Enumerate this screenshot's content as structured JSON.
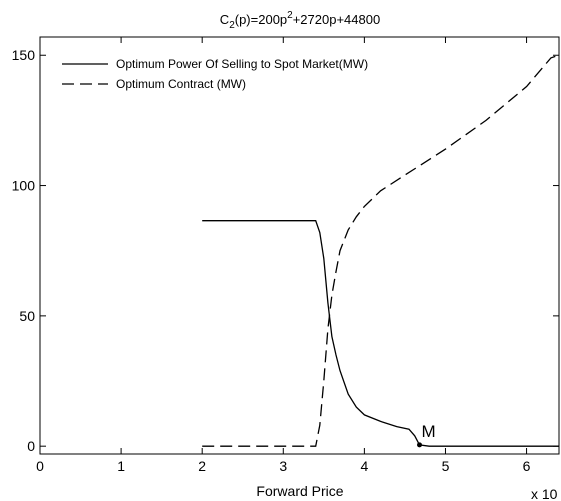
{
  "chart_data": {
    "type": "line",
    "title": {
      "lead": "C",
      "sub": "2",
      "mid": "(p)=200p",
      "sup": "2",
      "tail": "+2720p+44800"
    },
    "xlabel": "Forward Price",
    "x_exponent_label": "x 10",
    "xlim": [
      0,
      6.4
    ],
    "ylim": [
      -3,
      157
    ],
    "xticks": [
      0,
      1,
      2,
      3,
      4,
      5,
      6
    ],
    "yticks": [
      0,
      50,
      100,
      150
    ],
    "grid": false,
    "legend_position": "top-left",
    "series": [
      {
        "name": "Optimum Power Of Selling to Spot Market(MW)",
        "style": "solid",
        "color": "#000000",
        "points": [
          [
            2,
            86.5
          ],
          [
            3.4,
            86.5
          ],
          [
            3.45,
            82
          ],
          [
            3.5,
            72
          ],
          [
            3.55,
            55
          ],
          [
            3.6,
            42
          ],
          [
            3.65,
            35
          ],
          [
            3.7,
            29
          ],
          [
            3.8,
            20
          ],
          [
            3.9,
            15
          ],
          [
            4.0,
            12
          ],
          [
            4.2,
            9.5
          ],
          [
            4.4,
            7.5
          ],
          [
            4.55,
            6.5
          ],
          [
            4.62,
            4
          ],
          [
            4.68,
            0.5
          ],
          [
            4.8,
            0
          ],
          [
            6.4,
            0
          ]
        ]
      },
      {
        "name": "Optimum Contract (MW)",
        "style": "dashed",
        "color": "#000000",
        "points": [
          [
            2,
            0
          ],
          [
            3.4,
            0
          ],
          [
            3.45,
            8
          ],
          [
            3.5,
            25
          ],
          [
            3.55,
            45
          ],
          [
            3.6,
            58
          ],
          [
            3.65,
            67
          ],
          [
            3.7,
            75
          ],
          [
            3.8,
            83
          ],
          [
            3.9,
            88
          ],
          [
            4.0,
            92
          ],
          [
            4.2,
            98
          ],
          [
            4.5,
            104
          ],
          [
            5.0,
            114
          ],
          [
            5.5,
            125
          ],
          [
            6.0,
            138
          ],
          [
            6.3,
            149
          ],
          [
            6.4,
            150
          ]
        ]
      }
    ],
    "annotations": [
      {
        "text": "M",
        "x": 4.68,
        "y": 0.5
      }
    ]
  }
}
